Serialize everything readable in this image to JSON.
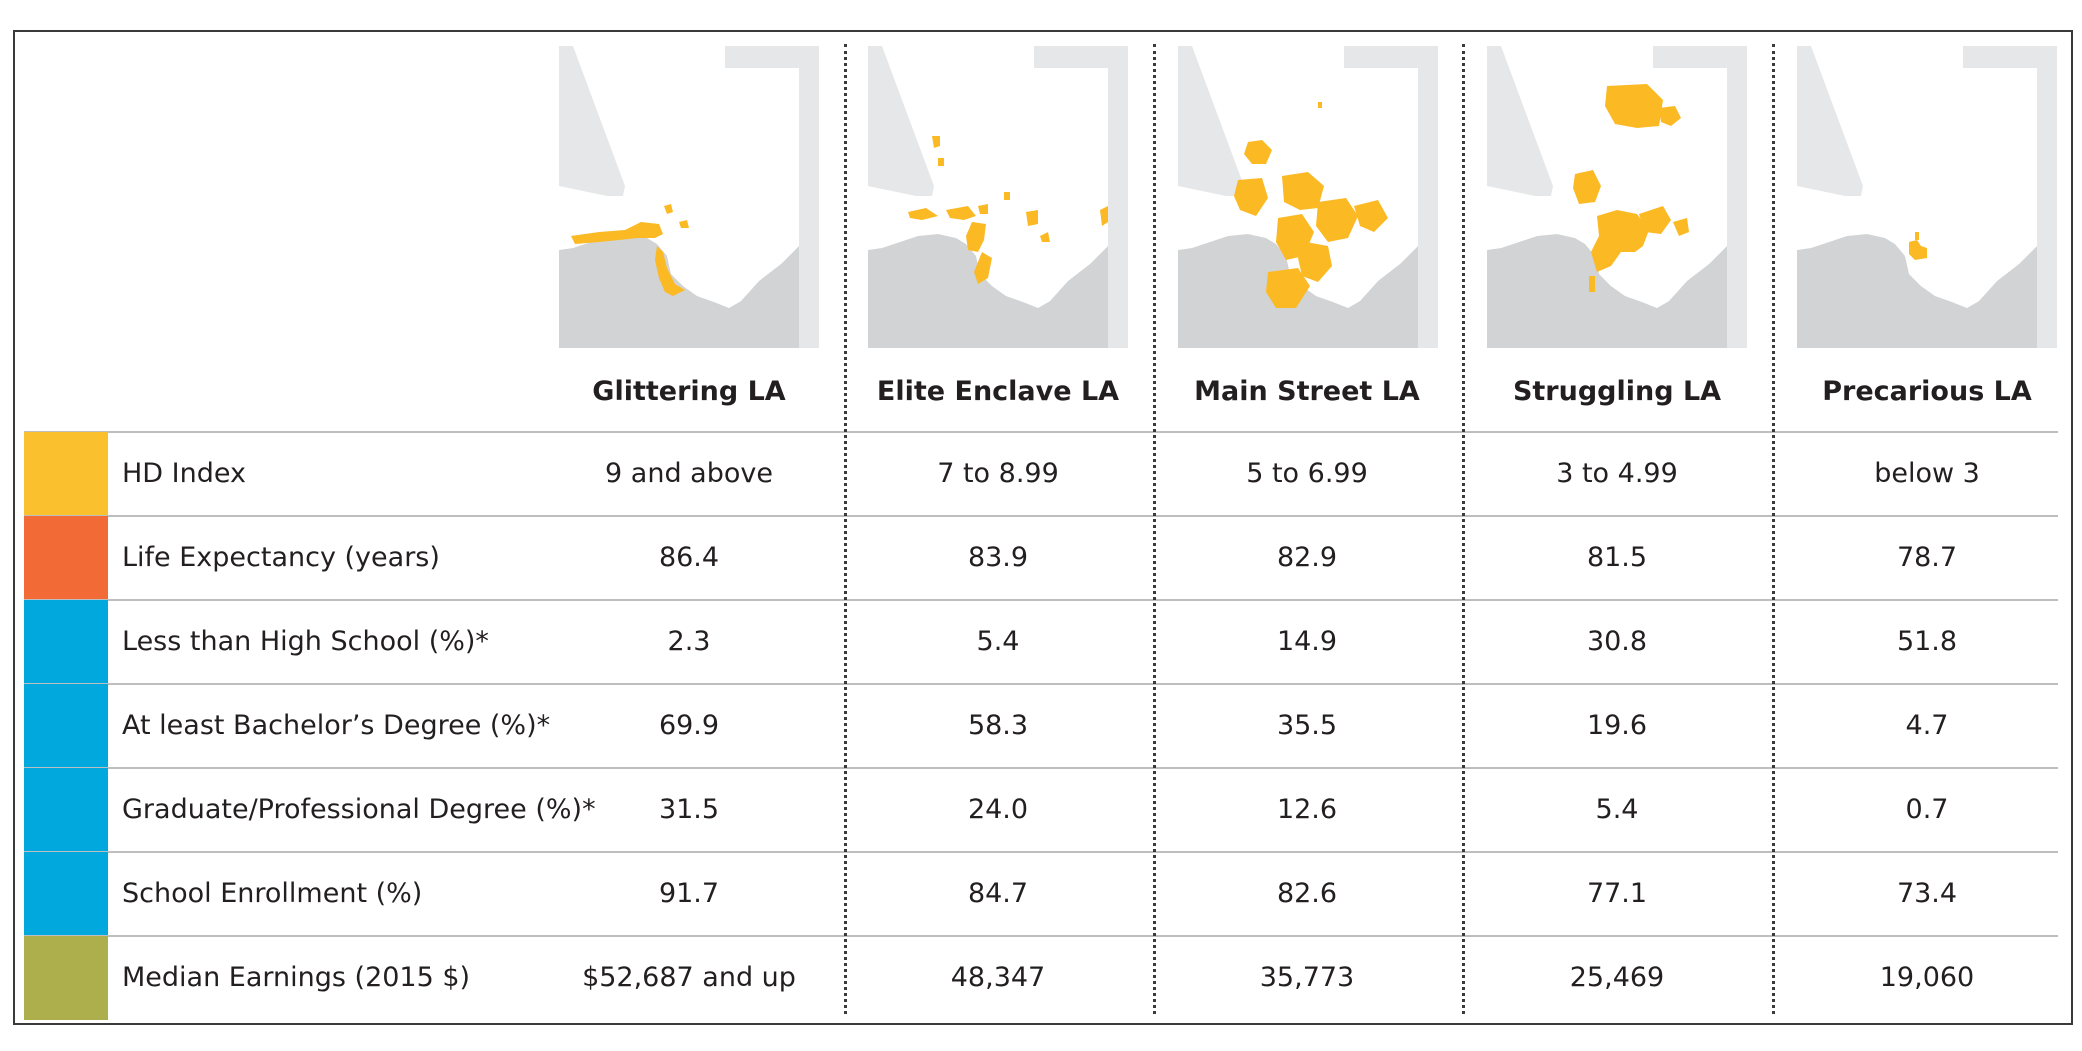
{
  "columns": [
    "Glittering LA",
    "Elite Enclave LA",
    "Main Street LA",
    "Struggling LA",
    "Precarious LA"
  ],
  "maps": [
    {
      "name": "Glittering LA",
      "icon": "la-county-map-glittering"
    },
    {
      "name": "Elite Enclave LA",
      "icon": "la-county-map-elite-enclave"
    },
    {
      "name": "Main Street LA",
      "icon": "la-county-map-main-street"
    },
    {
      "name": "Struggling LA",
      "icon": "la-county-map-struggling"
    },
    {
      "name": "Precarious LA",
      "icon": "la-county-map-precarious"
    }
  ],
  "colors": {
    "highlight": "#fbb924",
    "land": "#ffffff",
    "water_outside": "#d1d3d4",
    "map_background": "#e6e7e8",
    "hd_index": "#fbc02d",
    "life_expectancy": "#f26a36",
    "education": "#00a8de",
    "earnings": "#acaf4c"
  },
  "chart_data": {
    "type": "table",
    "columns": [
      "Glittering LA",
      "Elite Enclave LA",
      "Main Street LA",
      "Struggling LA",
      "Precarious LA"
    ],
    "rows": [
      {
        "label": "HD Index",
        "color": "#fbc02d",
        "values": [
          "9 and above",
          "7 to 8.99",
          "5 to 6.99",
          "3 to 4.99",
          "below 3"
        ]
      },
      {
        "label": "Life Expectancy (years)",
        "color": "#f26a36",
        "values": [
          "86.4",
          "83.9",
          "82.9",
          "81.5",
          "78.7"
        ]
      },
      {
        "label": "Less than High School (%)*",
        "color": "#00a8de",
        "values": [
          "2.3",
          "5.4",
          "14.9",
          "30.8",
          "51.8"
        ]
      },
      {
        "label": "At least Bachelor’s Degree (%)*",
        "color": "#00a8de",
        "values": [
          "69.9",
          "58.3",
          "35.5",
          "19.6",
          "4.7"
        ]
      },
      {
        "label": "Graduate/Professional Degree (%)*",
        "color": "#00a8de",
        "values": [
          "31.5",
          "24.0",
          "12.6",
          "5.4",
          "0.7"
        ]
      },
      {
        "label": "School Enrollment (%)",
        "color": "#00a8de",
        "values": [
          "91.7",
          "84.7",
          "82.6",
          "77.1",
          "73.4"
        ]
      },
      {
        "label": "Median Earnings (2015 $)",
        "color": "#acaf4c",
        "values": [
          "$52,687 and up",
          "48,347",
          "35,773",
          "25,469",
          "19,060"
        ]
      }
    ]
  }
}
